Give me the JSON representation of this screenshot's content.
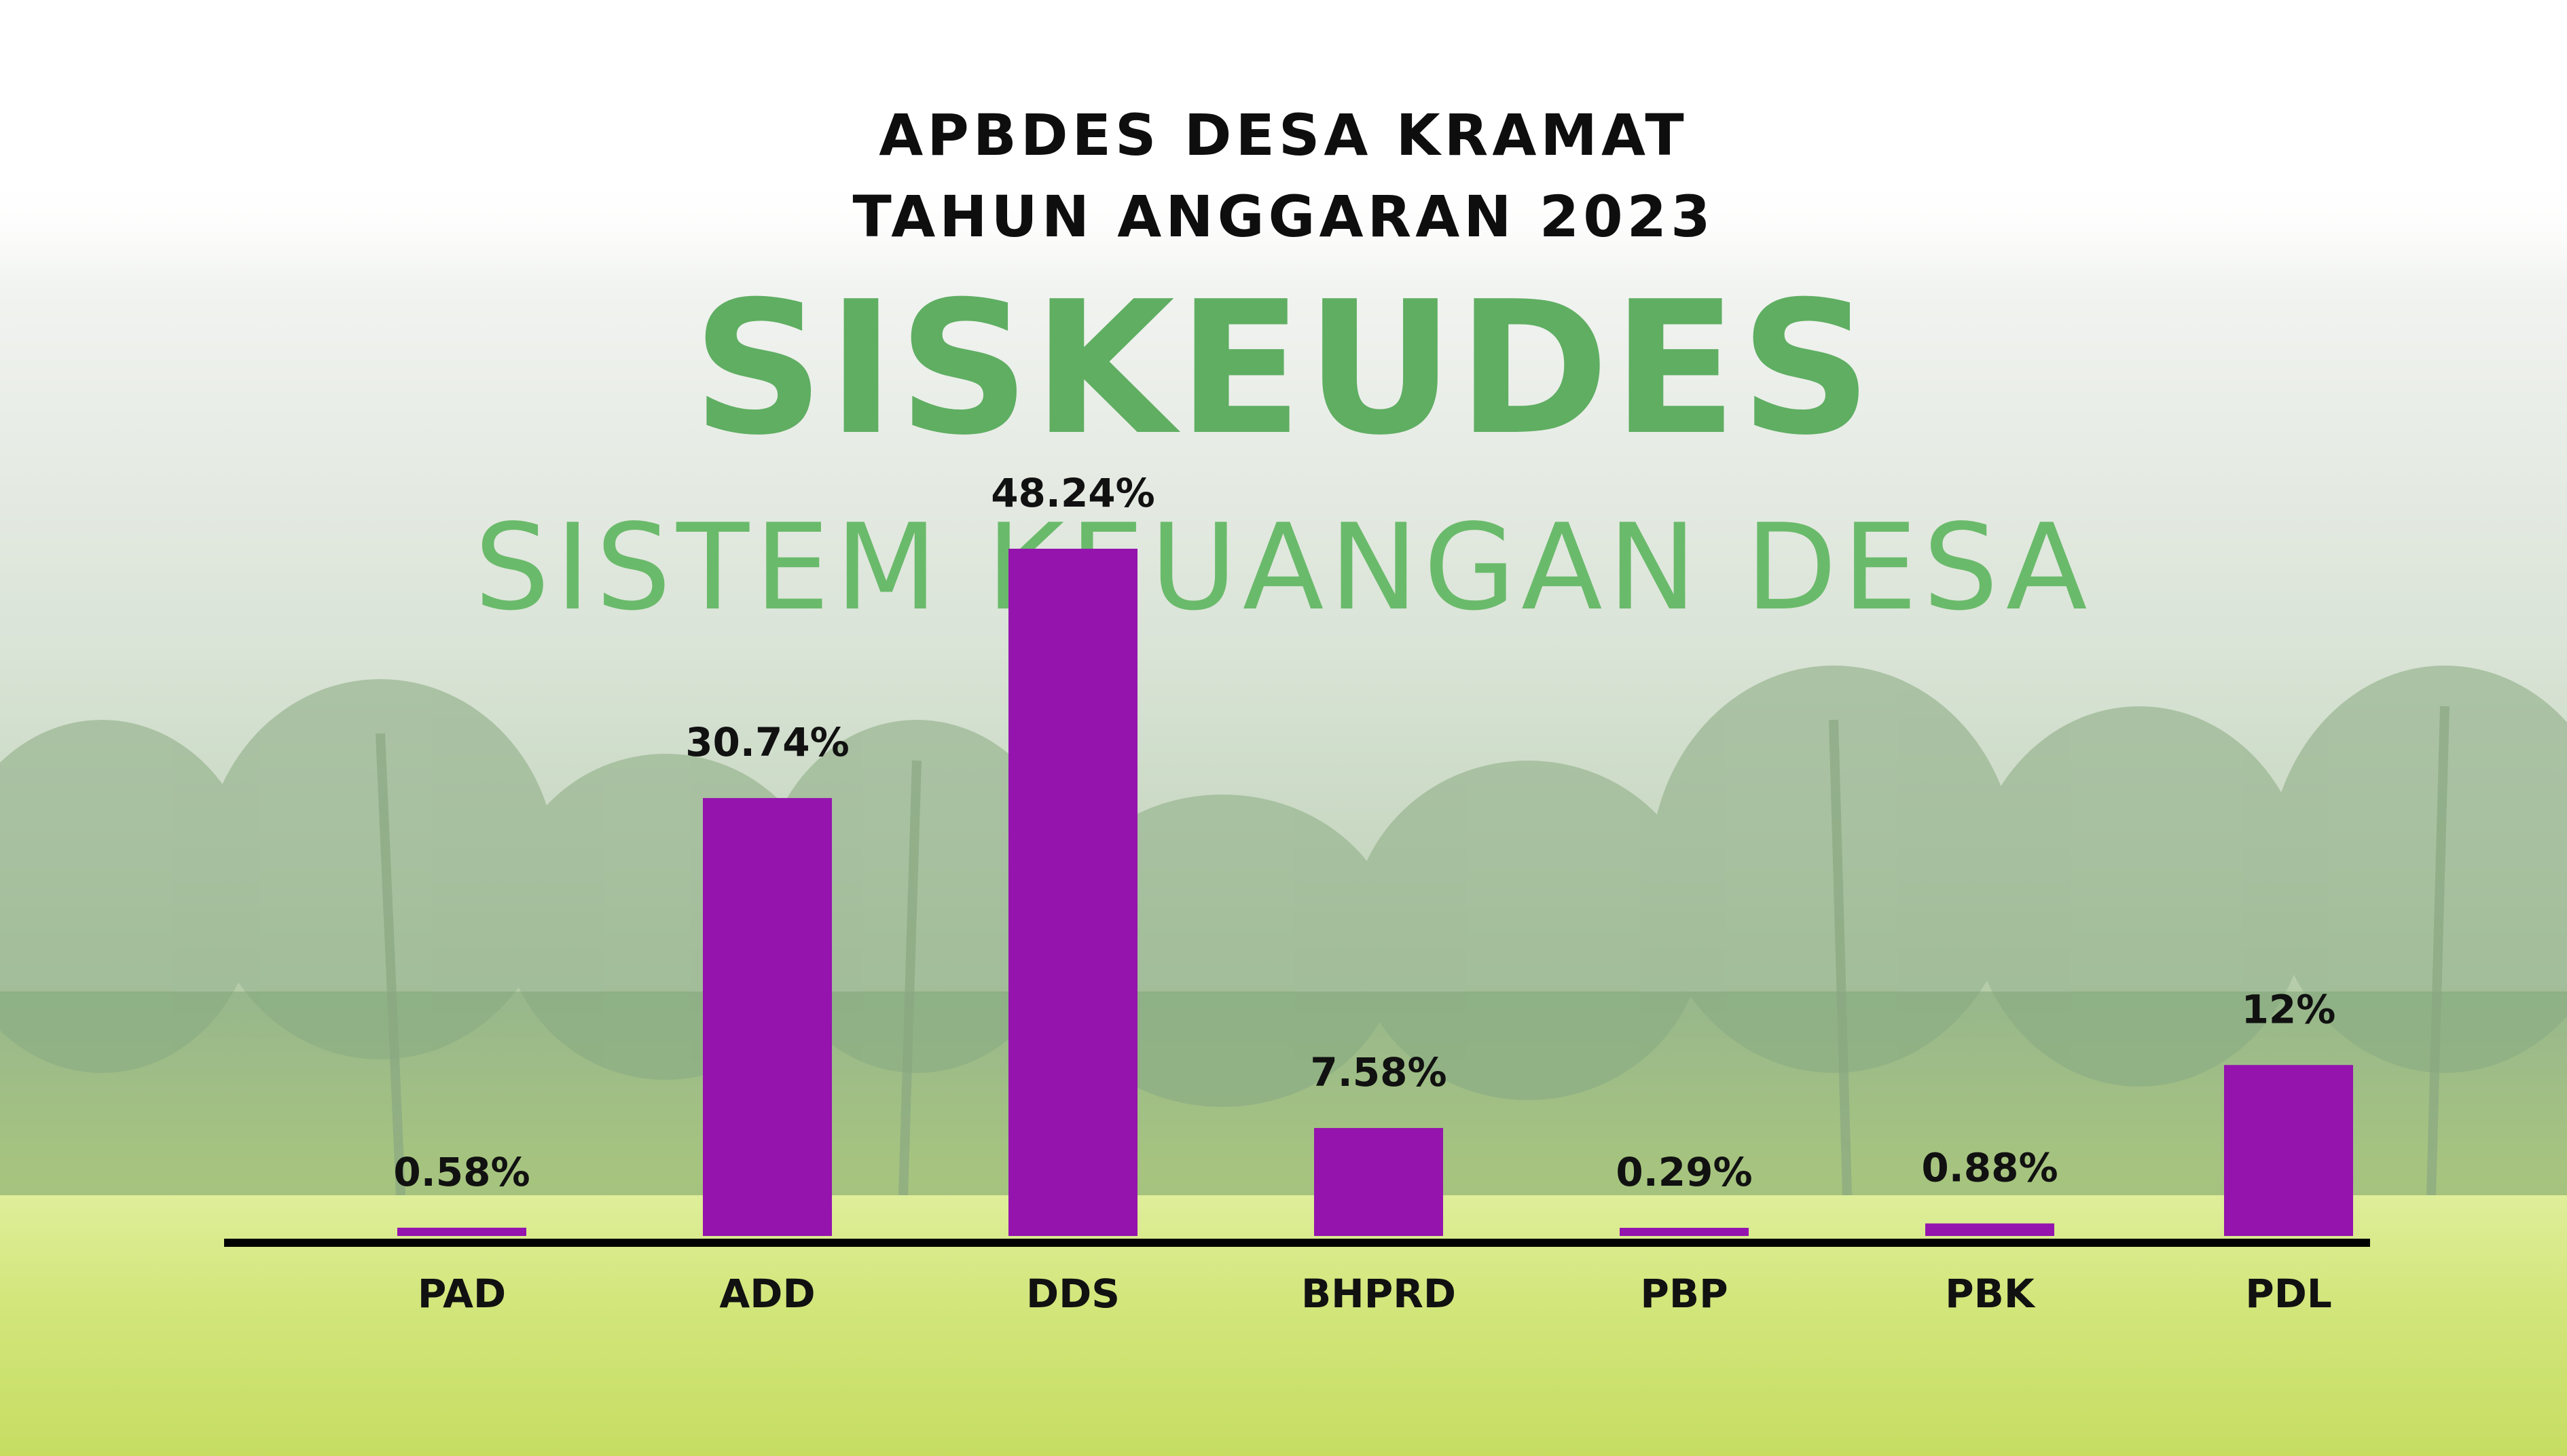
{
  "header": {
    "title_line1": "APBDES DESA KRAMAT",
    "title_line2": "TAHUN ANGGARAN 2023"
  },
  "background_logo": {
    "main": "SISKEUDES",
    "sub": "SISTEM KEUANGAN DESA"
  },
  "colors": {
    "bar": "#9414ad",
    "axis": "#000000",
    "logo_green": "#5fae62"
  },
  "chart_data": {
    "type": "bar",
    "title": "APBDES DESA KRAMAT TAHUN ANGGARAN 2023",
    "categories": [
      "PAD",
      "ADD",
      "DDS",
      "BHPRD",
      "PBP",
      "PBK",
      "PDL"
    ],
    "values": [
      0.58,
      30.74,
      48.24,
      7.58,
      0.29,
      0.88,
      12
    ],
    "value_labels": [
      "0.58%",
      "30.74%",
      "48.24%",
      "7.58%",
      "0.29%",
      "0.88%",
      "12%"
    ],
    "xlabel": "",
    "ylabel": "",
    "ylim": [
      0,
      48.24
    ],
    "grid": false,
    "legend": "none"
  }
}
